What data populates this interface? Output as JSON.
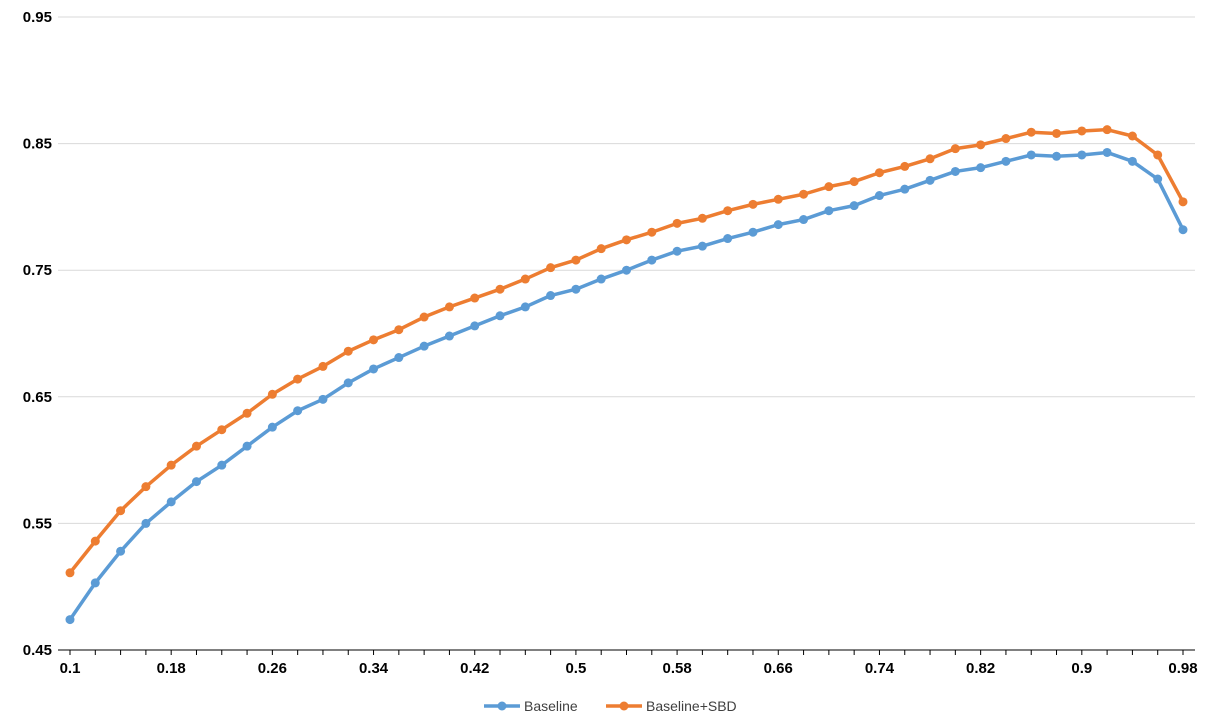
{
  "chart_data": {
    "type": "line",
    "title": "",
    "xlabel": "",
    "ylabel": "",
    "xlim": [
      0.1,
      0.98
    ],
    "ylim": [
      0.45,
      0.95
    ],
    "x_ticks": [
      "0.1",
      "0.18",
      "0.26",
      "0.34",
      "0.42",
      "0.5",
      "0.58",
      "0.66",
      "0.74",
      "0.82",
      "0.9",
      "0.98"
    ],
    "y_ticks": [
      "0.45",
      "0.55",
      "0.65",
      "0.75",
      "0.85",
      "0.95"
    ],
    "grid": "horizontal",
    "legend_position": "bottom-center",
    "x": [
      0.1,
      0.12,
      0.14,
      0.16,
      0.18,
      0.2,
      0.22,
      0.24,
      0.26,
      0.28,
      0.3,
      0.32,
      0.34,
      0.36,
      0.38,
      0.4,
      0.42,
      0.44,
      0.46,
      0.48,
      0.5,
      0.52,
      0.54,
      0.56,
      0.58,
      0.6,
      0.62,
      0.64,
      0.66,
      0.68,
      0.7,
      0.72,
      0.74,
      0.76,
      0.78,
      0.8,
      0.82,
      0.84,
      0.86,
      0.88,
      0.9,
      0.92,
      0.94,
      0.96,
      0.98
    ],
    "series": [
      {
        "name": "Baseline",
        "color": "#5b9bd5",
        "values": [
          0.474,
          0.503,
          0.528,
          0.55,
          0.567,
          0.583,
          0.596,
          0.611,
          0.626,
          0.639,
          0.648,
          0.661,
          0.672,
          0.681,
          0.69,
          0.698,
          0.706,
          0.714,
          0.721,
          0.73,
          0.735,
          0.743,
          0.75,
          0.758,
          0.765,
          0.769,
          0.775,
          0.78,
          0.786,
          0.79,
          0.797,
          0.801,
          0.809,
          0.814,
          0.821,
          0.828,
          0.831,
          0.836,
          0.841,
          0.84,
          0.841,
          0.843,
          0.836,
          0.822,
          0.782
        ]
      },
      {
        "name": "Baseline+SBD",
        "color": "#ed7d31",
        "values": [
          0.511,
          0.536,
          0.56,
          0.579,
          0.596,
          0.611,
          0.624,
          0.637,
          0.652,
          0.664,
          0.674,
          0.686,
          0.695,
          0.703,
          0.713,
          0.721,
          0.728,
          0.735,
          0.743,
          0.752,
          0.758,
          0.767,
          0.774,
          0.78,
          0.787,
          0.791,
          0.797,
          0.802,
          0.806,
          0.81,
          0.816,
          0.82,
          0.827,
          0.832,
          0.838,
          0.846,
          0.849,
          0.854,
          0.859,
          0.858,
          0.86,
          0.861,
          0.856,
          0.841,
          0.804
        ]
      }
    ]
  }
}
